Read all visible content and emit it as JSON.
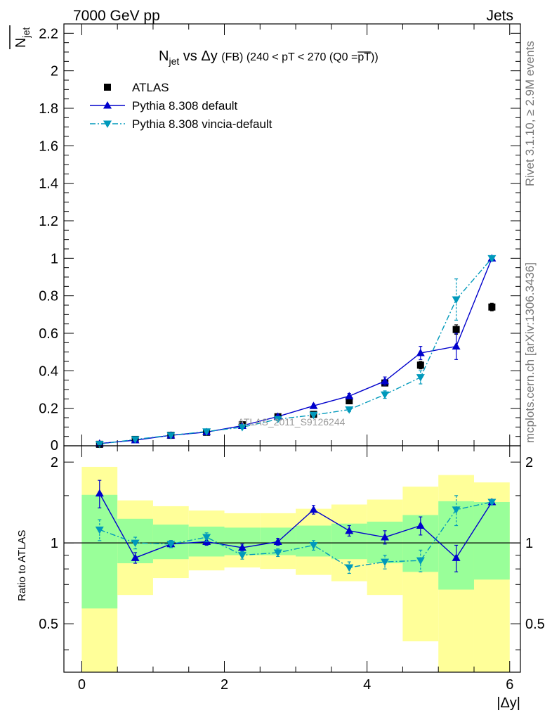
{
  "header": {
    "left_label": "7000 GeV pp",
    "right_label": "Jets"
  },
  "side_text": {
    "rivet": "Rivet 3.1.10, ≥ 2.9M events",
    "mcplots": "mcplots.cern.ch [arXiv:1306.3436]"
  },
  "watermark": "ATLAS_2011_S9126244",
  "colors": {
    "data": "#000000",
    "pythia_default": "#0000cc",
    "vincia": "#0099bb",
    "band_yellow": "#ffff99",
    "band_green": "#99ff99"
  },
  "chart_data": [
    {
      "type": "scatter",
      "panel": "main",
      "title": {
        "n": "N",
        "n_sub": "jet",
        "mid": " vs Δy ",
        "fb": "(FB)",
        "cut": " (240 < pT < 270 (Q0 =",
        "over": "pT",
        "close": "))"
      },
      "ylabel": {
        "n": "N",
        "sub": "jet"
      },
      "xlim": [
        -0.25,
        6.15
      ],
      "ylim": [
        0,
        2.25
      ],
      "yticks": [
        0.2,
        0.4,
        0.6,
        0.8,
        1.0,
        1.2,
        1.4,
        1.6,
        1.8,
        2.0,
        2.2
      ],
      "ytick_labels": [
        "0.2",
        "0.4",
        "0.6",
        "0.8",
        "1",
        "1.2",
        "1.4",
        "1.6",
        "1.8",
        "2",
        "2.2"
      ],
      "axis_zero_label": "0",
      "legend_position": "top-left",
      "x": [
        0.25,
        0.75,
        1.25,
        1.75,
        2.25,
        2.75,
        3.25,
        3.75,
        4.25,
        4.75,
        5.25,
        5.75
      ],
      "series": [
        {
          "name": "ATLAS",
          "style": "data",
          "marker": "square",
          "values": [
            0.008,
            0.034,
            0.056,
            0.072,
            0.112,
            0.155,
            0.168,
            0.24,
            0.335,
            0.43,
            0.62,
            0.74
          ],
          "errors": [
            0.003,
            0.004,
            0.005,
            0.006,
            0.007,
            0.008,
            0.009,
            0.012,
            0.015,
            0.02,
            0.025,
            0.02
          ]
        },
        {
          "name": "Pythia 8.308 default",
          "style": "solid",
          "marker": "triangle-up",
          "values": [
            0.012,
            0.03,
            0.056,
            0.073,
            0.107,
            0.156,
            0.213,
            0.265,
            0.345,
            0.495,
            0.53,
            1.0
          ],
          "errors": [
            0.002,
            0.002,
            0.003,
            0.004,
            0.006,
            0.008,
            0.01,
            0.014,
            0.022,
            0.035,
            0.07,
            0.01
          ]
        },
        {
          "name": "Pythia 8.308 vincia-default",
          "style": "dashdot",
          "marker": "triangle-down",
          "values": [
            0.009,
            0.034,
            0.056,
            0.076,
            0.099,
            0.142,
            0.164,
            0.193,
            0.273,
            0.365,
            0.78,
            1.0
          ],
          "errors": [
            0.002,
            0.003,
            0.004,
            0.005,
            0.005,
            0.007,
            0.009,
            0.011,
            0.02,
            0.035,
            0.11,
            0.01
          ]
        }
      ]
    },
    {
      "type": "scatter",
      "panel": "ratio",
      "ylabel": "Ratio to ATLAS",
      "xlabel": "|Δy|",
      "xlim": [
        -0.25,
        6.15
      ],
      "ylim": [
        0.33,
        2.3
      ],
      "log_y": true,
      "yticks": [
        0.5,
        1,
        2
      ],
      "ytick_labels": [
        "0.5",
        "1",
        "2"
      ],
      "xticks": [
        0,
        2,
        4,
        6
      ],
      "xtick_labels": [
        "0",
        "2",
        "4",
        "6"
      ],
      "bins": [
        [
          0,
          0.5
        ],
        [
          0.5,
          1.0
        ],
        [
          1.0,
          1.5
        ],
        [
          1.5,
          2.0
        ],
        [
          2.0,
          2.5
        ],
        [
          2.5,
          3.0
        ],
        [
          3.0,
          3.5
        ],
        [
          3.5,
          4.0
        ],
        [
          4.0,
          4.5
        ],
        [
          4.5,
          5.0
        ],
        [
          5.0,
          5.5
        ],
        [
          5.5,
          6.0
        ]
      ],
      "band_yellow": [
        [
          0.33,
          1.92
        ],
        [
          0.64,
          1.44
        ],
        [
          0.74,
          1.37
        ],
        [
          0.79,
          1.32
        ],
        [
          0.81,
          1.29
        ],
        [
          0.8,
          1.29
        ],
        [
          0.76,
          1.34
        ],
        [
          0.72,
          1.39
        ],
        [
          0.64,
          1.45
        ],
        [
          0.43,
          1.62
        ],
        [
          0.33,
          1.79
        ],
        [
          0.33,
          1.68
        ]
      ],
      "band_green": [
        [
          0.57,
          1.51
        ],
        [
          0.84,
          1.23
        ],
        [
          0.87,
          1.17
        ],
        [
          0.89,
          1.15
        ],
        [
          0.9,
          1.14
        ],
        [
          0.9,
          1.14
        ],
        [
          0.89,
          1.16
        ],
        [
          0.87,
          1.18
        ],
        [
          0.84,
          1.2
        ],
        [
          0.78,
          1.27
        ],
        [
          0.67,
          1.43
        ],
        [
          0.73,
          1.42
        ]
      ],
      "x": [
        0.25,
        0.75,
        1.25,
        1.75,
        2.25,
        2.75,
        3.25,
        3.75,
        4.25,
        4.75,
        5.25,
        5.75
      ],
      "series": [
        {
          "name": "Pythia 8.308 default",
          "style": "solid",
          "marker": "triangle-up",
          "values": [
            1.53,
            0.88,
            0.99,
            1.01,
            0.96,
            1.01,
            1.33,
            1.11,
            1.05,
            1.16,
            0.88,
            1.42
          ],
          "errors": [
            0.18,
            0.04,
            0.03,
            0.03,
            0.03,
            0.03,
            0.05,
            0.05,
            0.06,
            0.09,
            0.1,
            0.02
          ]
        },
        {
          "name": "Pythia 8.308 vincia-default",
          "style": "dashdot",
          "marker": "triangle-down",
          "values": [
            1.12,
            1.0,
            0.99,
            1.05,
            0.9,
            0.92,
            0.98,
            0.81,
            0.85,
            0.86,
            1.33,
            1.42
          ],
          "errors": [
            0.1,
            0.05,
            0.03,
            0.04,
            0.03,
            0.03,
            0.04,
            0.04,
            0.05,
            0.08,
            0.17,
            0.02
          ]
        }
      ]
    }
  ]
}
